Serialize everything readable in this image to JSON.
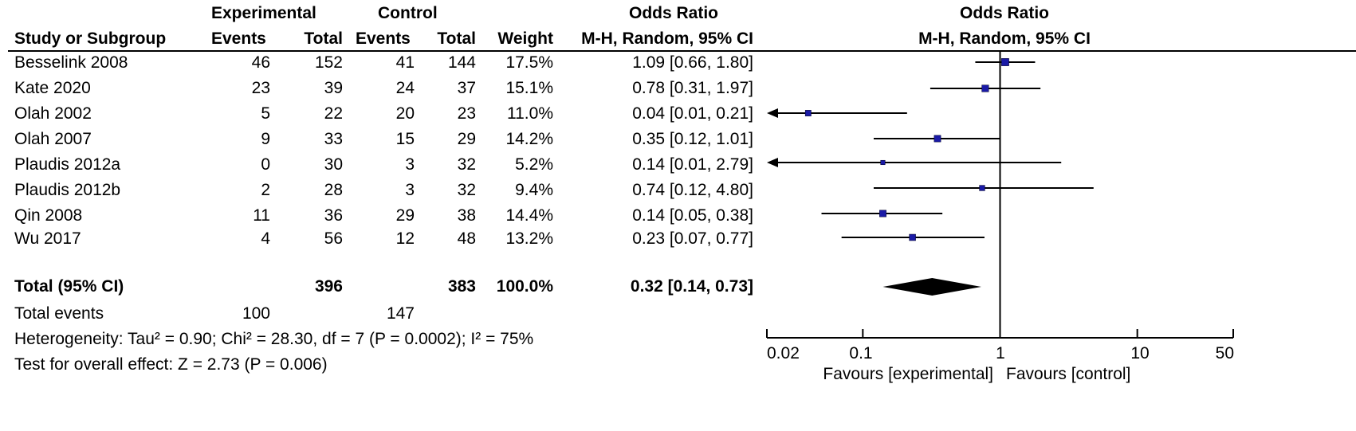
{
  "headers": {
    "experimental": "Experimental",
    "control": "Control",
    "odds_ratio": "Odds Ratio",
    "study": "Study or Subgroup",
    "events": "Events",
    "total": "Total",
    "weight": "Weight",
    "method": "M-H, Random, 95% CI",
    "plot_title": "Odds Ratio",
    "plot_method": "M-H, Random, 95% CI"
  },
  "studies": [
    {
      "name": "Besselink 2008",
      "exp_events": "46",
      "exp_total": "152",
      "ctl_events": "41",
      "ctl_total": "144",
      "weight": "17.5%",
      "ci_text": "1.09 [0.66, 1.80]"
    },
    {
      "name": "Kate 2020",
      "exp_events": "23",
      "exp_total": "39",
      "ctl_events": "24",
      "ctl_total": "37",
      "weight": "15.1%",
      "ci_text": "0.78 [0.31, 1.97]"
    },
    {
      "name": "Olah 2002",
      "exp_events": "5",
      "exp_total": "22",
      "ctl_events": "20",
      "ctl_total": "23",
      "weight": "11.0%",
      "ci_text": "0.04 [0.01, 0.21]"
    },
    {
      "name": "Olah 2007",
      "exp_events": "9",
      "exp_total": "33",
      "ctl_events": "15",
      "ctl_total": "29",
      "weight": "14.2%",
      "ci_text": "0.35 [0.12, 1.01]"
    },
    {
      "name": "Plaudis 2012a",
      "exp_events": "0",
      "exp_total": "30",
      "ctl_events": "3",
      "ctl_total": "32",
      "weight": "5.2%",
      "ci_text": "0.14 [0.01, 2.79]"
    },
    {
      "name": "Plaudis 2012b",
      "exp_events": "2",
      "exp_total": "28",
      "ctl_events": "3",
      "ctl_total": "32",
      "weight": "9.4%",
      "ci_text": "0.74 [0.12, 4.80]"
    },
    {
      "name": "Qin 2008",
      "exp_events": "11",
      "exp_total": "36",
      "ctl_events": "29",
      "ctl_total": "38",
      "weight": "14.4%",
      "ci_text": "0.14 [0.05, 0.38]"
    },
    {
      "name": "Wu 2017",
      "exp_events": "4",
      "exp_total": "56",
      "ctl_events": "12",
      "ctl_total": "48",
      "weight": "13.2%",
      "ci_text": "0.23 [0.07, 0.77]"
    }
  ],
  "total": {
    "label": "Total (95% CI)",
    "exp_total": "396",
    "ctl_total": "383",
    "weight": "100.0%",
    "ci_text": "0.32 [0.14, 0.73]"
  },
  "total_events": {
    "label": "Total events",
    "exp": "100",
    "ctl": "147"
  },
  "heterogeneity": "Heterogeneity: Tau² = 0.90; Chi² = 28.30, df = 7 (P = 0.0002); I² = 75%",
  "overall_effect": "Test for overall effect: Z = 2.73 (P = 0.006)",
  "axis": {
    "ticks": [
      "0.02",
      "0.1",
      "1",
      "10",
      "50"
    ],
    "favours_left": "Favours [experimental]",
    "favours_right": "Favours [control]"
  },
  "colors": {
    "marker": "#1a1aa6",
    "diamond": "#000000",
    "line": "#000000"
  },
  "chart_data": {
    "type": "forest",
    "scale": "log",
    "xlim": [
      0.02,
      50
    ],
    "null_line": 1,
    "studies": [
      {
        "name": "Besselink 2008",
        "or": 1.09,
        "lower": 0.66,
        "upper": 1.8,
        "weight": 17.5
      },
      {
        "name": "Kate 2020",
        "or": 0.78,
        "lower": 0.31,
        "upper": 1.97,
        "weight": 15.1
      },
      {
        "name": "Olah 2002",
        "or": 0.04,
        "lower": 0.01,
        "upper": 0.21,
        "weight": 11.0
      },
      {
        "name": "Olah 2007",
        "or": 0.35,
        "lower": 0.12,
        "upper": 1.01,
        "weight": 14.2
      },
      {
        "name": "Plaudis 2012a",
        "or": 0.14,
        "lower": 0.01,
        "upper": 2.79,
        "weight": 5.2
      },
      {
        "name": "Plaudis 2012b",
        "or": 0.74,
        "lower": 0.12,
        "upper": 4.8,
        "weight": 9.4
      },
      {
        "name": "Qin 2008",
        "or": 0.14,
        "lower": 0.05,
        "upper": 0.38,
        "weight": 14.4
      },
      {
        "name": "Wu 2017",
        "or": 0.23,
        "lower": 0.07,
        "upper": 0.77,
        "weight": 13.2
      }
    ],
    "pooled": {
      "or": 0.32,
      "lower": 0.14,
      "upper": 0.73
    }
  }
}
